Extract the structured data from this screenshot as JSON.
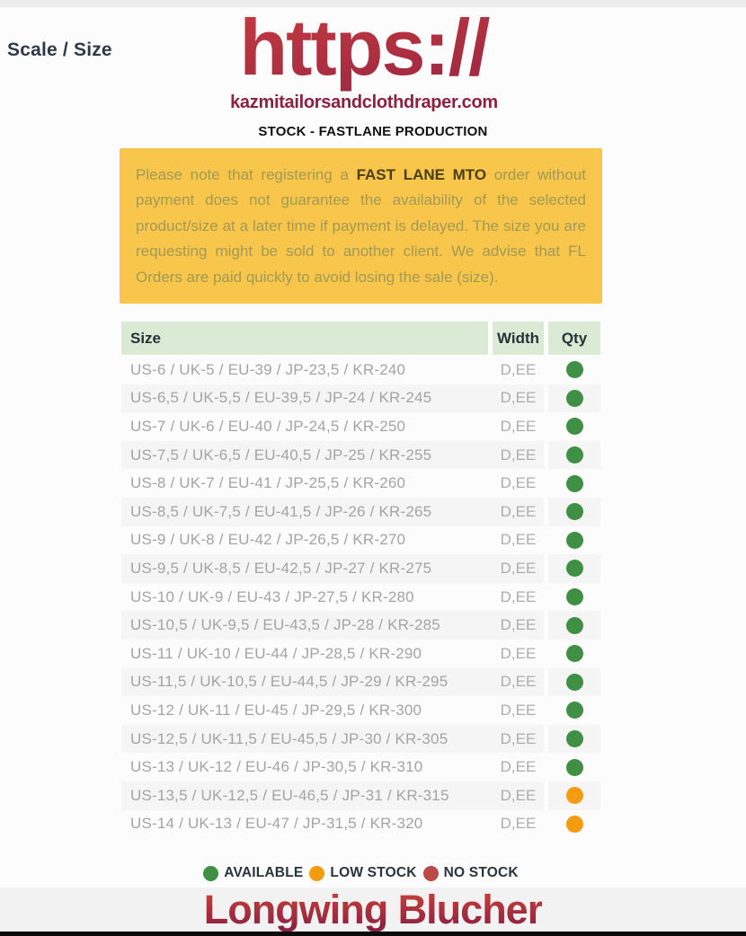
{
  "header": {
    "scale_size_label": "Scale / Size",
    "logo_text": "https://",
    "domain": "kazmitailorsandclothdraper.com",
    "section_title": "STOCK - FASTLANE PRODUCTION"
  },
  "notice": {
    "text_before": "Please note that registering a ",
    "bold_text": "FAST LANE MTO",
    "text_after": " order without payment does not guarantee the availability of the selected product/size at a later time if payment is delayed. The size you are requesting might be sold to another client. We advise that FL Orders are paid quickly to avoid losing the sale (size).",
    "background_color": "#f7c64b"
  },
  "table": {
    "headers": {
      "size": "Size",
      "width": "Width",
      "qty": "Qty"
    },
    "header_background": "#dbead5",
    "rows": [
      {
        "size": "US-6 / UK-5 / EU-39 / JP-23,5 / KR-240",
        "width": "D,EE",
        "status": "available"
      },
      {
        "size": "US-6,5 / UK-5,5 / EU-39,5 / JP-24 / KR-245",
        "width": "D,EE",
        "status": "available"
      },
      {
        "size": "US-7 / UK-6 / EU-40 / JP-24,5 / KR-250",
        "width": "D,EE",
        "status": "available"
      },
      {
        "size": "US-7,5 / UK-6,5 / EU-40,5 / JP-25 / KR-255",
        "width": "D,EE",
        "status": "available"
      },
      {
        "size": "US-8 / UK-7 / EU-41 / JP-25,5 / KR-260",
        "width": "D,EE",
        "status": "available"
      },
      {
        "size": "US-8,5 / UK-7,5 / EU-41,5 / JP-26 / KR-265",
        "width": "D,EE",
        "status": "available"
      },
      {
        "size": "US-9 / UK-8 / EU-42 / JP-26,5 / KR-270",
        "width": "D,EE",
        "status": "available"
      },
      {
        "size": "US-9,5 / UK-8,5 / EU-42,5 / JP-27 / KR-275",
        "width": "D,EE",
        "status": "available"
      },
      {
        "size": "US-10 / UK-9 / EU-43 / JP-27,5 / KR-280",
        "width": "D,EE",
        "status": "available"
      },
      {
        "size": "US-10,5 / UK-9,5 / EU-43,5 / JP-28 / KR-285",
        "width": "D,EE",
        "status": "available"
      },
      {
        "size": "US-11 / UK-10 / EU-44 / JP-28,5 / KR-290",
        "width": "D,EE",
        "status": "available"
      },
      {
        "size": "US-11,5 / UK-10,5 / EU-44,5 / JP-29 / KR-295",
        "width": "D,EE",
        "status": "available"
      },
      {
        "size": "US-12 / UK-11 / EU-45 / JP-29,5 / KR-300",
        "width": "D,EE",
        "status": "available"
      },
      {
        "size": "US-12,5 / UK-11,5 / EU-45,5 / JP-30 / KR-305",
        "width": "D,EE",
        "status": "available"
      },
      {
        "size": "US-13 / UK-12 / EU-46 / JP-30,5 / KR-310",
        "width": "D,EE",
        "status": "available"
      },
      {
        "size": "US-13,5 / UK-12,5 / EU-46,5 / JP-31 / KR-315",
        "width": "D,EE",
        "status": "low-stock"
      },
      {
        "size": "US-14 / UK-13 / EU-47 / JP-31,5 / KR-320",
        "width": "D,EE",
        "status": "low-stock"
      }
    ]
  },
  "status_colors": {
    "available": "#3f8f44",
    "low-stock": "#f39c12",
    "no-stock": "#b94a48"
  },
  "legend": [
    {
      "label": "AVAILABLE",
      "status": "available",
      "color": "#3f8f44"
    },
    {
      "label": "LOW STOCK",
      "status": "low-stock",
      "color": "#f39c12"
    },
    {
      "label": "NO STOCK",
      "status": "no-stock",
      "color": "#b94a48"
    }
  ],
  "footer": {
    "product_title": "Longwing Blucher"
  }
}
